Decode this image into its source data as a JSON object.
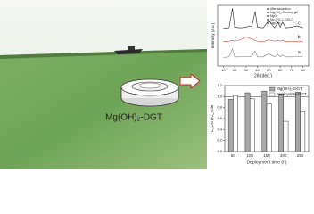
{
  "label": "Mg(OH)₂-DGT",
  "chart_data": [
    {
      "type": "line",
      "xlabel": "2θ (deg.)",
      "ylabel": "Intensity (a.u.)",
      "x": [
        10,
        15,
        18,
        20,
        25,
        30,
        33,
        35,
        38,
        40,
        45,
        50,
        55,
        58,
        60,
        62,
        65,
        70,
        75,
        80
      ],
      "xlim": [
        5,
        85
      ],
      "xticks": [
        10,
        20,
        30,
        40,
        50,
        60,
        70,
        80
      ],
      "ylim": [
        0,
        100
      ],
      "annotations": [
        "After adsorption",
        "Mg(OH)₂-Stocking gel",
        "MgO",
        "Mg₃(PO₄)₂·22H₂O",
        "Mg(OH)₂"
      ],
      "series": [
        {
          "name": "c",
          "color": "#222222",
          "values": [
            62,
            63,
            95,
            64,
            63,
            64,
            66,
            65,
            90,
            64,
            63,
            75,
            63,
            72,
            64,
            72,
            63,
            64,
            66,
            63
          ]
        },
        {
          "name": "b",
          "color": "#e04030",
          "values": [
            40,
            41,
            42,
            41,
            43,
            48,
            46,
            45,
            42,
            41,
            40,
            43,
            41,
            42,
            41,
            42,
            40,
            41,
            40,
            40
          ]
        },
        {
          "name": "a",
          "color": "#888888",
          "values": [
            14,
            15,
            28,
            15,
            15,
            16,
            15,
            16,
            25,
            15,
            15,
            20,
            15,
            19,
            15,
            18,
            15,
            15,
            16,
            15
          ]
        }
      ]
    },
    {
      "type": "bar",
      "xlabel": "Deployment time (h)",
      "ylabel": "C_DGT/C_soln",
      "categories": [
        "50",
        "100",
        "150",
        "200",
        "250"
      ],
      "ylim": [
        0,
        1.2
      ],
      "yticks": [
        {
          "value": 0,
          "label": "0.0"
        },
        {
          "value": 0.2,
          "label": "0.2"
        },
        {
          "value": 0.4,
          "label": "0.4"
        },
        {
          "value": 0.6,
          "label": "0.6"
        },
        {
          "value": 0.8,
          "label": "0.8"
        },
        {
          "value": 1,
          "label": "1.0"
        },
        {
          "value": 1.2,
          "label": "1.2"
        }
      ],
      "reference_line": 1,
      "legend": "upper right",
      "series": [
        {
          "name": "Mg(OH)₂-DGT",
          "color": "#a8a8a8",
          "values": [
            0.95,
            1.07,
            1.1,
            1.05,
            1.08
          ]
        },
        {
          "name": "Ferrihydrite-DGT",
          "color": "#ffffff",
          "values": [
            1.02,
            0.96,
            0.87,
            0.55,
            0.72
          ]
        }
      ]
    }
  ]
}
